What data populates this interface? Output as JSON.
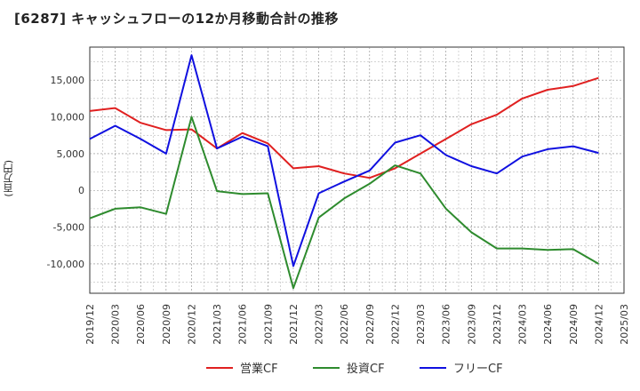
{
  "title": "[6287]  キャッシュフローの12か月移動合計の推移",
  "chart_data": {
    "type": "line",
    "title": "[6287]  キャッシュフローの12か月移動合計の推移",
    "ylabel": "(百万円)",
    "xlabel": "",
    "ylim": [
      -14000,
      19500
    ],
    "yticks": [
      -10000,
      -5000,
      0,
      5000,
      10000,
      15000
    ],
    "ytick_labels": [
      "-10,000",
      "-5,000",
      "0",
      "5,000",
      "10,000",
      "15,000"
    ],
    "categories": [
      "2019/12",
      "2020/03",
      "2020/06",
      "2020/09",
      "2020/12",
      "2021/03",
      "2021/06",
      "2021/09",
      "2021/12",
      "2022/03",
      "2022/06",
      "2022/09",
      "2022/12",
      "2023/03",
      "2023/06",
      "2023/09",
      "2023/12",
      "2024/03",
      "2024/06",
      "2024/09",
      "2024/12",
      "2025/03"
    ],
    "grid": true,
    "legend_position": "bottom",
    "series": [
      {
        "name": "営業CF",
        "color": "#e02020",
        "values": [
          10800,
          11200,
          9200,
          8200,
          8300,
          5700,
          7800,
          6400,
          3000,
          3300,
          2300,
          1700,
          3000,
          5000,
          7000,
          9000,
          10300,
          12500,
          13700,
          14200,
          15300,
          null
        ]
      },
      {
        "name": "投資CF",
        "color": "#2e8b2e",
        "values": [
          -3800,
          -2500,
          -2300,
          -3200,
          10000,
          -100,
          -500,
          -400,
          -13300,
          -3700,
          -1100,
          900,
          3400,
          2300,
          -2500,
          -5700,
          -7900,
          -7900,
          -8100,
          -8000,
          -10000,
          null
        ]
      },
      {
        "name": "フリーCF",
        "color": "#1010e0",
        "values": [
          7000,
          8800,
          7000,
          5000,
          18400,
          5700,
          7300,
          6000,
          -10300,
          -400,
          1200,
          2700,
          6500,
          7500,
          4800,
          3300,
          2300,
          4600,
          5600,
          6000,
          5100,
          null
        ]
      }
    ]
  }
}
